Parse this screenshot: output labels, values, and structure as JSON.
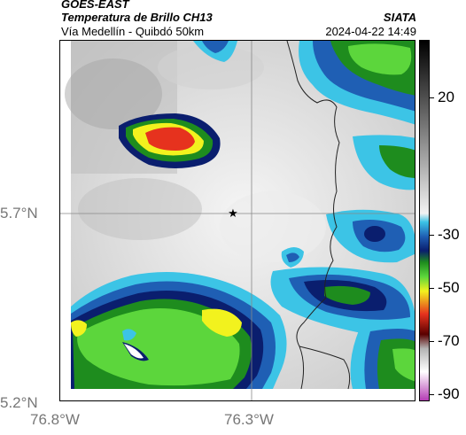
{
  "header": {
    "satellite": "GOES-EAST",
    "product": "Temperatura de Brillo CH13",
    "organization": "SIATA",
    "region": "Vía Medellín - Quibdó 50km",
    "datetime": "2024-04-22 14:49"
  },
  "axes": {
    "lat_labels": [
      "5.7°N",
      "5.2°N"
    ],
    "lon_labels": [
      "76.8°W",
      "76.3°W"
    ]
  },
  "colorbar": {
    "tick_labels": [
      "20",
      "-30",
      "-50",
      "-70",
      "-90"
    ],
    "units_hidden": true,
    "stops": [
      {
        "value": 35,
        "color": "#000000"
      },
      {
        "value": 0,
        "color": "#8c8c8c"
      },
      {
        "value": -25,
        "color": "#f2f2f2"
      },
      {
        "value": -28,
        "color": "#3cc4e6"
      },
      {
        "value": -33,
        "color": "#1f5fb4"
      },
      {
        "value": -38,
        "color": "#0a1e6e"
      },
      {
        "value": -42,
        "color": "#1e8c1e"
      },
      {
        "value": -47,
        "color": "#5cd63c"
      },
      {
        "value": -52,
        "color": "#f2f21e"
      },
      {
        "value": -60,
        "color": "#e6321e"
      },
      {
        "value": -67,
        "color": "#5a0000"
      },
      {
        "value": -72,
        "color": "#b4b4b4"
      },
      {
        "value": -80,
        "color": "#ffffff"
      },
      {
        "value": -90,
        "color": "#b43cb4"
      }
    ]
  },
  "map": {
    "marker": "star-marker",
    "background_gradient": [
      "#ffffff",
      "#bdbdbd"
    ]
  }
}
